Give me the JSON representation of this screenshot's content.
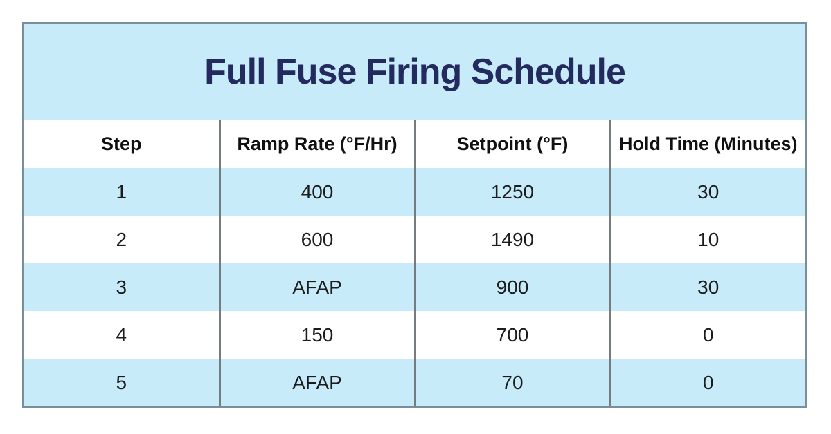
{
  "title": "Full Fuse Firing Schedule",
  "colors": {
    "title_band_blue": "#c7ebf9",
    "row_stripe_blue": "#c7ebf9",
    "title_text_navy": "#232a5e",
    "outer_border_slate": "#7b8f9a",
    "column_divider_gray": "#767b7f",
    "header_text": "#111111",
    "cell_text": "#1c1c1c",
    "page_background": "#ffffff"
  },
  "table": {
    "columns": [
      "Step",
      "Ramp Rate (°F/Hr)",
      "Setpoint (°F)",
      "Hold Time (Minutes)"
    ],
    "rows": [
      [
        "1",
        "400",
        "1250",
        "30"
      ],
      [
        "2",
        "600",
        "1490",
        "10"
      ],
      [
        "3",
        "AFAP",
        "900",
        "30"
      ],
      [
        "4",
        "150",
        "700",
        "0"
      ],
      [
        "5",
        "AFAP",
        "70",
        "0"
      ]
    ]
  },
  "chart_data": {
    "type": "table",
    "title": "Full Fuse Firing Schedule",
    "columns": [
      "Step",
      "Ramp Rate (°F/Hr)",
      "Setpoint (°F)",
      "Hold Time (Minutes)"
    ],
    "rows": [
      [
        "1",
        "400",
        "1250",
        "30"
      ],
      [
        "2",
        "600",
        "1490",
        "10"
      ],
      [
        "3",
        "AFAP",
        "900",
        "30"
      ],
      [
        "4",
        "150",
        "700",
        "0"
      ],
      [
        "5",
        "AFAP",
        "70",
        "0"
      ]
    ],
    "notes_layout": "title band on light blue, white header row, alternating light-blue/white data rows, vertical gray dividers only, slate outer border"
  }
}
